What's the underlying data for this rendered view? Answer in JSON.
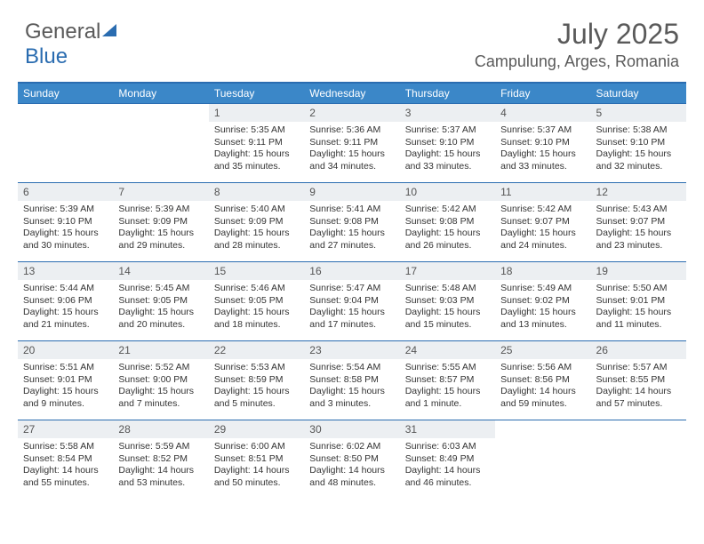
{
  "logo": {
    "text1": "General",
    "text2": "Blue"
  },
  "header": {
    "month_title": "July 2025",
    "location": "Campulung, Arges, Romania"
  },
  "colors": {
    "header_bg": "#3b87c8",
    "border": "#2a6cb0",
    "daynum_bg": "#eceff2",
    "text_gray": "#5a5a5a"
  },
  "day_labels": [
    "Sunday",
    "Monday",
    "Tuesday",
    "Wednesday",
    "Thursday",
    "Friday",
    "Saturday"
  ],
  "weeks": [
    [
      {
        "n": "",
        "sunrise": "",
        "sunset": "",
        "daylight": ""
      },
      {
        "n": "",
        "sunrise": "",
        "sunset": "",
        "daylight": ""
      },
      {
        "n": "1",
        "sunrise": "Sunrise: 5:35 AM",
        "sunset": "Sunset: 9:11 PM",
        "daylight": "Daylight: 15 hours and 35 minutes."
      },
      {
        "n": "2",
        "sunrise": "Sunrise: 5:36 AM",
        "sunset": "Sunset: 9:11 PM",
        "daylight": "Daylight: 15 hours and 34 minutes."
      },
      {
        "n": "3",
        "sunrise": "Sunrise: 5:37 AM",
        "sunset": "Sunset: 9:10 PM",
        "daylight": "Daylight: 15 hours and 33 minutes."
      },
      {
        "n": "4",
        "sunrise": "Sunrise: 5:37 AM",
        "sunset": "Sunset: 9:10 PM",
        "daylight": "Daylight: 15 hours and 33 minutes."
      },
      {
        "n": "5",
        "sunrise": "Sunrise: 5:38 AM",
        "sunset": "Sunset: 9:10 PM",
        "daylight": "Daylight: 15 hours and 32 minutes."
      }
    ],
    [
      {
        "n": "6",
        "sunrise": "Sunrise: 5:39 AM",
        "sunset": "Sunset: 9:10 PM",
        "daylight": "Daylight: 15 hours and 30 minutes."
      },
      {
        "n": "7",
        "sunrise": "Sunrise: 5:39 AM",
        "sunset": "Sunset: 9:09 PM",
        "daylight": "Daylight: 15 hours and 29 minutes."
      },
      {
        "n": "8",
        "sunrise": "Sunrise: 5:40 AM",
        "sunset": "Sunset: 9:09 PM",
        "daylight": "Daylight: 15 hours and 28 minutes."
      },
      {
        "n": "9",
        "sunrise": "Sunrise: 5:41 AM",
        "sunset": "Sunset: 9:08 PM",
        "daylight": "Daylight: 15 hours and 27 minutes."
      },
      {
        "n": "10",
        "sunrise": "Sunrise: 5:42 AM",
        "sunset": "Sunset: 9:08 PM",
        "daylight": "Daylight: 15 hours and 26 minutes."
      },
      {
        "n": "11",
        "sunrise": "Sunrise: 5:42 AM",
        "sunset": "Sunset: 9:07 PM",
        "daylight": "Daylight: 15 hours and 24 minutes."
      },
      {
        "n": "12",
        "sunrise": "Sunrise: 5:43 AM",
        "sunset": "Sunset: 9:07 PM",
        "daylight": "Daylight: 15 hours and 23 minutes."
      }
    ],
    [
      {
        "n": "13",
        "sunrise": "Sunrise: 5:44 AM",
        "sunset": "Sunset: 9:06 PM",
        "daylight": "Daylight: 15 hours and 21 minutes."
      },
      {
        "n": "14",
        "sunrise": "Sunrise: 5:45 AM",
        "sunset": "Sunset: 9:05 PM",
        "daylight": "Daylight: 15 hours and 20 minutes."
      },
      {
        "n": "15",
        "sunrise": "Sunrise: 5:46 AM",
        "sunset": "Sunset: 9:05 PM",
        "daylight": "Daylight: 15 hours and 18 minutes."
      },
      {
        "n": "16",
        "sunrise": "Sunrise: 5:47 AM",
        "sunset": "Sunset: 9:04 PM",
        "daylight": "Daylight: 15 hours and 17 minutes."
      },
      {
        "n": "17",
        "sunrise": "Sunrise: 5:48 AM",
        "sunset": "Sunset: 9:03 PM",
        "daylight": "Daylight: 15 hours and 15 minutes."
      },
      {
        "n": "18",
        "sunrise": "Sunrise: 5:49 AM",
        "sunset": "Sunset: 9:02 PM",
        "daylight": "Daylight: 15 hours and 13 minutes."
      },
      {
        "n": "19",
        "sunrise": "Sunrise: 5:50 AM",
        "sunset": "Sunset: 9:01 PM",
        "daylight": "Daylight: 15 hours and 11 minutes."
      }
    ],
    [
      {
        "n": "20",
        "sunrise": "Sunrise: 5:51 AM",
        "sunset": "Sunset: 9:01 PM",
        "daylight": "Daylight: 15 hours and 9 minutes."
      },
      {
        "n": "21",
        "sunrise": "Sunrise: 5:52 AM",
        "sunset": "Sunset: 9:00 PM",
        "daylight": "Daylight: 15 hours and 7 minutes."
      },
      {
        "n": "22",
        "sunrise": "Sunrise: 5:53 AM",
        "sunset": "Sunset: 8:59 PM",
        "daylight": "Daylight: 15 hours and 5 minutes."
      },
      {
        "n": "23",
        "sunrise": "Sunrise: 5:54 AM",
        "sunset": "Sunset: 8:58 PM",
        "daylight": "Daylight: 15 hours and 3 minutes."
      },
      {
        "n": "24",
        "sunrise": "Sunrise: 5:55 AM",
        "sunset": "Sunset: 8:57 PM",
        "daylight": "Daylight: 15 hours and 1 minute."
      },
      {
        "n": "25",
        "sunrise": "Sunrise: 5:56 AM",
        "sunset": "Sunset: 8:56 PM",
        "daylight": "Daylight: 14 hours and 59 minutes."
      },
      {
        "n": "26",
        "sunrise": "Sunrise: 5:57 AM",
        "sunset": "Sunset: 8:55 PM",
        "daylight": "Daylight: 14 hours and 57 minutes."
      }
    ],
    [
      {
        "n": "27",
        "sunrise": "Sunrise: 5:58 AM",
        "sunset": "Sunset: 8:54 PM",
        "daylight": "Daylight: 14 hours and 55 minutes."
      },
      {
        "n": "28",
        "sunrise": "Sunrise: 5:59 AM",
        "sunset": "Sunset: 8:52 PM",
        "daylight": "Daylight: 14 hours and 53 minutes."
      },
      {
        "n": "29",
        "sunrise": "Sunrise: 6:00 AM",
        "sunset": "Sunset: 8:51 PM",
        "daylight": "Daylight: 14 hours and 50 minutes."
      },
      {
        "n": "30",
        "sunrise": "Sunrise: 6:02 AM",
        "sunset": "Sunset: 8:50 PM",
        "daylight": "Daylight: 14 hours and 48 minutes."
      },
      {
        "n": "31",
        "sunrise": "Sunrise: 6:03 AM",
        "sunset": "Sunset: 8:49 PM",
        "daylight": "Daylight: 14 hours and 46 minutes."
      },
      {
        "n": "",
        "sunrise": "",
        "sunset": "",
        "daylight": ""
      },
      {
        "n": "",
        "sunrise": "",
        "sunset": "",
        "daylight": ""
      }
    ]
  ]
}
